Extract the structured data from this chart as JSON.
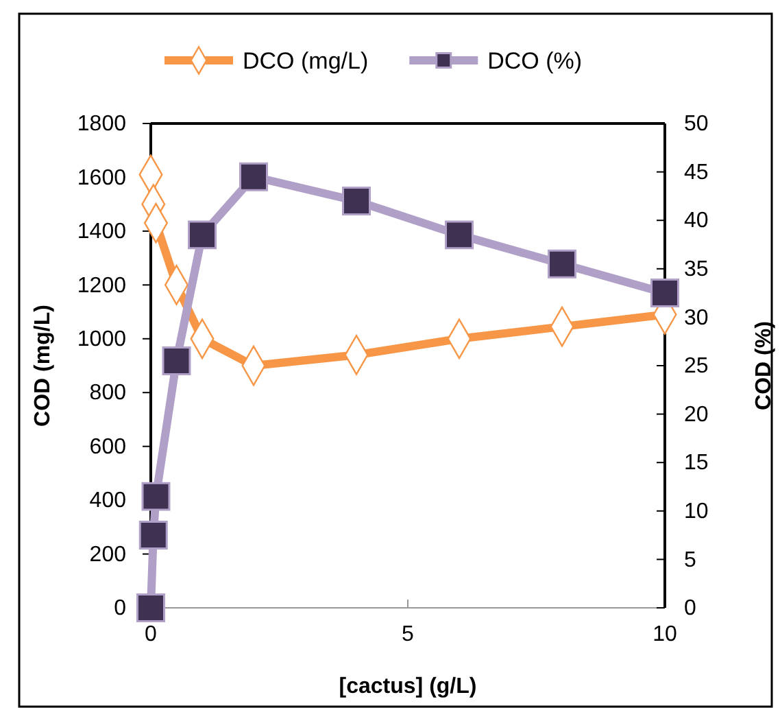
{
  "chart_data": {
    "type": "line",
    "xlabel": "[cactus] (g/L)",
    "ylabel": "COD (mg/L)",
    "y2label": "COD (%)",
    "x": [
      0,
      0.05,
      0.1,
      0.5,
      1,
      2,
      4,
      6,
      8,
      10
    ],
    "series": [
      {
        "name": "DCO  (mg/L)",
        "color": "#f79646",
        "marker": "diamond",
        "values": [
          1610,
          1500,
          1430,
          1200,
          1000,
          900,
          940,
          1000,
          1045,
          1090
        ]
      },
      {
        "name": "DCO (%)",
        "color": "#b0a0c8",
        "marker": "square",
        "axis": "y2",
        "values": [
          0,
          7.5,
          11.5,
          25.5,
          38.5,
          44.5,
          42,
          38.5,
          35.5,
          32.5
        ]
      }
    ],
    "xlim": [
      0,
      10
    ],
    "xticks": [
      0,
      5,
      10
    ],
    "ylim": [
      0,
      1800
    ],
    "yticks": [
      0,
      200,
      400,
      600,
      800,
      1000,
      1200,
      1400,
      1600,
      1800
    ],
    "y2lim": [
      0,
      50
    ],
    "y2ticks": [
      0,
      5,
      10,
      15,
      20,
      25,
      30,
      35,
      40,
      45,
      50
    ],
    "legend": "top",
    "grid": false
  }
}
